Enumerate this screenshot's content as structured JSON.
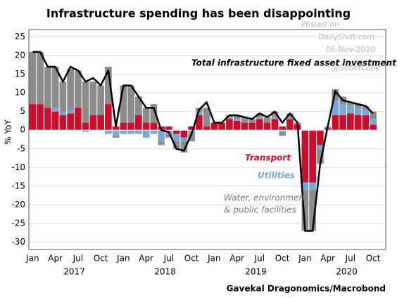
{
  "chart_data": {
    "type": "bar",
    "stacked": true,
    "title": "Infrastructure spending has been disappointing",
    "y_label": "% YoY",
    "source": "Gavekal Dragonomics/Macrobond",
    "watermark": [
      "Posted on",
      "DailyShot.com",
      "06-Nov-2020",
      "@SoberLook"
    ],
    "categories": [
      "Jan",
      null,
      null,
      "Apr",
      null,
      null,
      "Jul",
      null,
      null,
      "Oct",
      null,
      null,
      "Jan",
      null,
      null,
      "Apr",
      null,
      null,
      "Jul",
      null,
      null,
      "Oct",
      null,
      null,
      "Jan",
      null,
      null,
      "Apr",
      null,
      null,
      "Jul",
      null,
      null,
      "Oct",
      null,
      null,
      "Jan",
      null,
      null,
      "Apr",
      null,
      null,
      "Jul",
      null,
      null,
      "Oct"
    ],
    "year_labels": [
      "2017",
      "2018",
      "2019",
      "2020"
    ],
    "series": [
      {
        "name": "Transport",
        "color": "#c8102e",
        "values": [
          7,
          7,
          6,
          5,
          4,
          4.5,
          6,
          2,
          4,
          4,
          7,
          1,
          2,
          2,
          4,
          2,
          2,
          1,
          1,
          -1,
          -2,
          1,
          4,
          1,
          2,
          2,
          3,
          2.5,
          2,
          2,
          3,
          2,
          3,
          1,
          3,
          1.5,
          -14,
          -14,
          -4,
          0.5,
          4,
          4,
          4.5,
          4,
          4,
          1.5
        ]
      },
      {
        "name": "Utilities",
        "color": "#7ba7d7",
        "values": [
          0,
          0,
          0,
          1,
          1,
          1,
          0,
          -0.5,
          0,
          0,
          -1,
          -1.5,
          -1,
          -1,
          -1,
          -2,
          -1,
          -3,
          -1,
          -2,
          -1,
          -1,
          1,
          0,
          0,
          0,
          0.5,
          0.5,
          0,
          0,
          0.5,
          0,
          0.5,
          -0.5,
          0.5,
          0,
          -2,
          -2,
          -1,
          0.5,
          4,
          3,
          2,
          2,
          1.5,
          1.5
        ]
      },
      {
        "name": [
          "Water, environment",
          "& public facilities"
        ],
        "color": "#8c8c8c",
        "values": [
          14,
          14,
          11,
          11,
          8,
          11,
          10,
          11,
          9,
          8,
          10,
          -0.5,
          10,
          10,
          5,
          4,
          5,
          -1,
          -1,
          -2,
          -3,
          -2,
          1,
          5,
          0,
          0,
          0.5,
          1,
          1.5,
          1,
          1,
          1.5,
          1.5,
          -1,
          1,
          0.5,
          -11,
          -11,
          -4,
          0,
          3,
          2,
          1,
          1,
          1,
          2
        ]
      },
      {
        "name": "Total infrastructure fixed asset investment",
        "color": "#000000",
        "type": "line",
        "values": [
          21,
          21,
          17,
          17,
          13,
          17,
          16,
          13,
          14,
          12,
          16,
          1,
          12,
          12,
          9,
          6,
          6,
          0,
          -0.5,
          -5,
          -5.5,
          -1,
          5.5,
          7.5,
          2,
          2,
          4,
          4,
          3.5,
          3,
          4.5,
          3.5,
          5,
          2,
          4.5,
          2,
          -27,
          -27,
          -9,
          1,
          10.5,
          8,
          7.5,
          7,
          6.5,
          4.5
        ]
      }
    ],
    "ylim": [
      -32,
      27
    ],
    "yticks": [
      -30,
      -25,
      -20,
      -15,
      -10,
      -5,
      0,
      5,
      10,
      15,
      20,
      25
    ],
    "grid": true
  }
}
